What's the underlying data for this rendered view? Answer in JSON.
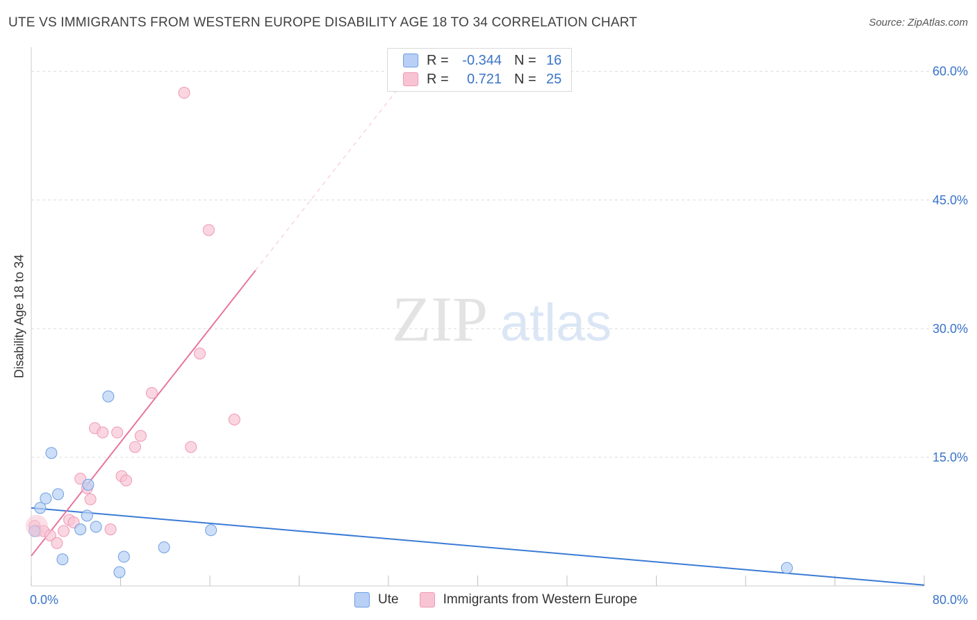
{
  "title": "UTE VS IMMIGRANTS FROM WESTERN EUROPE DISABILITY AGE 18 TO 34 CORRELATION CHART",
  "source": "Source: ZipAtlas.com",
  "watermark": {
    "zip": "ZIP",
    "atlas": "atlas"
  },
  "legend": {
    "rows": [
      {
        "r_label": "R =",
        "r_value": "-0.344",
        "n_label": "N =",
        "n_value": "16"
      },
      {
        "r_label": "R =",
        "r_value": "0.721",
        "n_label": "N =",
        "n_value": "25"
      }
    ]
  },
  "colors": {
    "ute_fill": "#b8d0f5",
    "ute_stroke": "#6d9ee0",
    "ute_line": "#3a7bd5",
    "imm_fill": "#f8c4d4",
    "imm_stroke": "#ee98b5",
    "imm_line": "#e8739d",
    "grid": "#dcdcdc",
    "tick_label": "#3a74c9"
  },
  "chart_data": {
    "type": "scatter",
    "title": "UTE VS IMMIGRANTS FROM WESTERN EUROPE DISABILITY AGE 18 TO 34 CORRELATION CHART",
    "xlabel": "",
    "ylabel": "Disability Age 18 to 34",
    "xlim": [
      0,
      80
    ],
    "ylim": [
      0,
      62
    ],
    "x_tick_labels": [
      "0.0%",
      "80.0%"
    ],
    "y_ticks": [
      15,
      30,
      45,
      60
    ],
    "y_tick_labels": [
      "15.0%",
      "30.0%",
      "45.0%",
      "60.0%"
    ],
    "grid": true,
    "legend_position": "top-center",
    "series": [
      {
        "name": "Ute",
        "r": -0.344,
        "n": 16,
        "points": [
          {
            "x": 0.3,
            "y": 6.4
          },
          {
            "x": 0.8,
            "y": 9.1
          },
          {
            "x": 1.3,
            "y": 10.2
          },
          {
            "x": 1.8,
            "y": 15.5
          },
          {
            "x": 2.4,
            "y": 10.7
          },
          {
            "x": 2.8,
            "y": 3.1
          },
          {
            "x": 4.4,
            "y": 6.6
          },
          {
            "x": 5.0,
            "y": 8.2
          },
          {
            "x": 5.1,
            "y": 11.8
          },
          {
            "x": 5.8,
            "y": 6.9
          },
          {
            "x": 6.9,
            "y": 22.1
          },
          {
            "x": 7.9,
            "y": 1.6
          },
          {
            "x": 8.3,
            "y": 3.4
          },
          {
            "x": 11.9,
            "y": 4.5
          },
          {
            "x": 16.1,
            "y": 6.5
          },
          {
            "x": 67.7,
            "y": 2.1
          }
        ],
        "trend": {
          "x": [
            0,
            80
          ],
          "y": [
            9.1,
            0.1
          ],
          "dashed_extension": false
        }
      },
      {
        "name": "Immigrants from Western Europe",
        "r": 0.721,
        "n": 25,
        "points": [
          {
            "x": 0.3,
            "y": 7.0
          },
          {
            "x": 0.5,
            "y": 6.4
          },
          {
            "x": 1.1,
            "y": 6.4
          },
          {
            "x": 1.7,
            "y": 5.9
          },
          {
            "x": 2.3,
            "y": 5.0
          },
          {
            "x": 2.9,
            "y": 6.4
          },
          {
            "x": 3.4,
            "y": 7.7
          },
          {
            "x": 3.8,
            "y": 7.4
          },
          {
            "x": 4.4,
            "y": 12.5
          },
          {
            "x": 5.0,
            "y": 11.4
          },
          {
            "x": 5.3,
            "y": 10.1
          },
          {
            "x": 5.7,
            "y": 18.4
          },
          {
            "x": 6.4,
            "y": 17.9
          },
          {
            "x": 7.1,
            "y": 6.6
          },
          {
            "x": 7.7,
            "y": 17.9
          },
          {
            "x": 8.1,
            "y": 12.8
          },
          {
            "x": 8.5,
            "y": 12.3
          },
          {
            "x": 9.3,
            "y": 16.2
          },
          {
            "x": 9.8,
            "y": 17.5
          },
          {
            "x": 10.8,
            "y": 22.5
          },
          {
            "x": 13.7,
            "y": 57.5
          },
          {
            "x": 14.3,
            "y": 16.2
          },
          {
            "x": 15.1,
            "y": 27.1
          },
          {
            "x": 15.9,
            "y": 41.5
          },
          {
            "x": 18.2,
            "y": 19.4
          }
        ],
        "trend": {
          "x": [
            0,
            20.1
          ],
          "y": [
            3.5,
            36.8
          ],
          "dashed_extension_to": {
            "x": 33.0,
            "y": 58.2
          }
        }
      }
    ]
  },
  "bottom_legend": [
    {
      "label": "Ute"
    },
    {
      "label": "Immigrants from Western Europe"
    }
  ]
}
